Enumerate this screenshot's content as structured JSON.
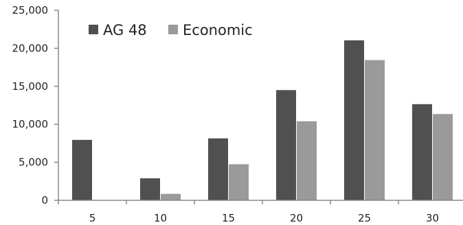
{
  "chart_data": {
    "type": "bar",
    "title": "",
    "xlabel": "",
    "ylabel": "",
    "categories": [
      "5",
      "10",
      "15",
      "20",
      "25",
      "30"
    ],
    "ylim": [
      0,
      25000
    ],
    "yticks": [
      0,
      5000,
      10000,
      15000,
      20000,
      25000
    ],
    "ytick_labels": [
      "0",
      "5,000",
      "10,000",
      "15,000",
      "20,000",
      "25,000"
    ],
    "grid": false,
    "legend_position": "top-left",
    "series": [
      {
        "name": "AG 48",
        "color": "#505050",
        "values": [
          7950,
          2900,
          8150,
          14500,
          21050,
          12650
        ]
      },
      {
        "name": "Economic",
        "color": "#9a9a9a",
        "values": [
          0,
          850,
          4750,
          10400,
          18450,
          11350
        ]
      }
    ]
  }
}
